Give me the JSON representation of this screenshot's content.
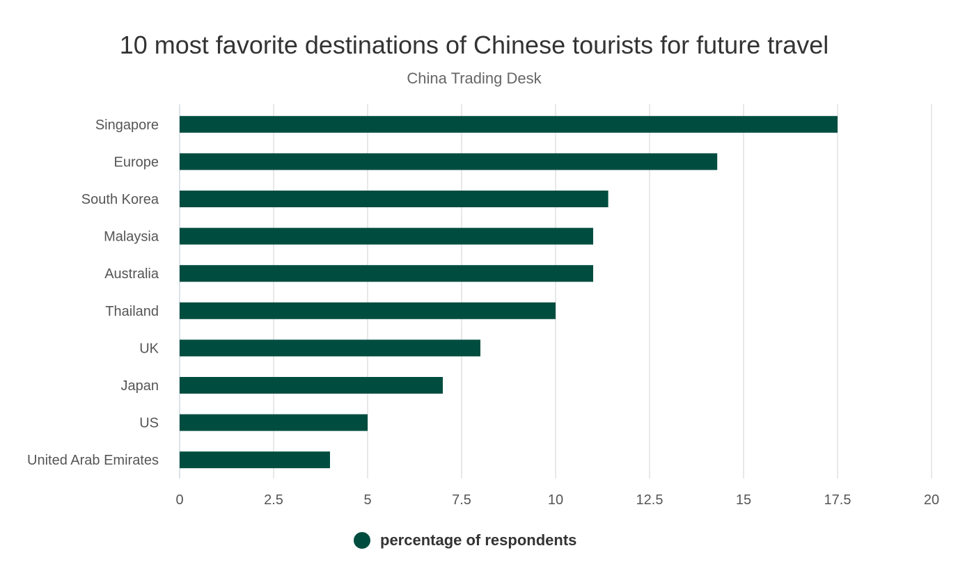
{
  "chart_data": {
    "type": "bar",
    "orientation": "horizontal",
    "title": "10 most favorite destinations of Chinese tourists for future travel",
    "subtitle": "China Trading Desk",
    "categories": [
      "Singapore",
      "Europe",
      "South Korea",
      "Malaysia",
      "Australia",
      "Thailand",
      "UK",
      "Japan",
      "US",
      "United Arab Emirates"
    ],
    "series": [
      {
        "name": "percentage of respondents",
        "values": [
          17.5,
          14.3,
          11.4,
          11,
          11,
          10,
          8,
          7,
          5,
          4
        ],
        "color": "#004d40"
      }
    ],
    "xlim": [
      0,
      20
    ],
    "xticks": [
      "0",
      "2.5",
      "5",
      "7.5",
      "10",
      "12.5",
      "15",
      "17.5",
      "20"
    ],
    "grid": true,
    "legend_position": "bottom"
  }
}
